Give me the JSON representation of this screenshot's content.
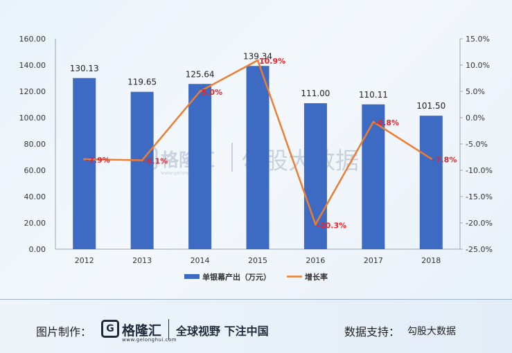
{
  "chart_data": {
    "type": "bar",
    "categories": [
      "2012",
      "2013",
      "2014",
      "2015",
      "2016",
      "2017",
      "2018"
    ],
    "series": [
      {
        "name": "单银幕产出（万元）",
        "type": "bar",
        "axis": "left",
        "values": [
          130.13,
          119.65,
          125.64,
          139.34,
          111.0,
          110.11,
          101.5
        ],
        "labels": [
          "130.13",
          "119.65",
          "125.64",
          "139.34",
          "111.00",
          "110.11",
          "101.50"
        ]
      },
      {
        "name": "增长率",
        "type": "line",
        "axis": "right",
        "values": [
          -7.9,
          -8.1,
          5.0,
          10.9,
          -20.3,
          -0.8,
          -7.8
        ],
        "labels": [
          "-7.9%",
          "-8.1%",
          "5.0%",
          "10.9%",
          "-20.3%",
          "-0.8%",
          "-7.8%"
        ]
      }
    ],
    "yleft": {
      "ylim": [
        0,
        160
      ],
      "ticks": [
        "0.00",
        "20.00",
        "40.00",
        "60.00",
        "80.00",
        "100.00",
        "120.00",
        "140.00",
        "160.00"
      ]
    },
    "yright": {
      "ylim": [
        -25,
        15
      ],
      "ticks": [
        "-25.0%",
        "-20.0%",
        "-15.0%",
        "-10.0%",
        "-5.0%",
        "0.0%",
        "5.0%",
        "10.0%",
        "15.0%"
      ]
    },
    "legend": "bottom-center",
    "colors": {
      "bar": "#3d6bc4",
      "line": "#ee7d31",
      "line_label": "#e8232a"
    }
  },
  "watermark": {
    "logo_text": "格隆汇",
    "logo_sub": "www.gelonghui.com",
    "source_text": "勾股大数据"
  },
  "footer": {
    "credit_label": "图片制作：",
    "brand_logo_letter": "G",
    "brand_name": "格隆汇",
    "brand_url": "www.gelonghui.com",
    "slogan": "全球视野 下注中国",
    "support_label": "数据支持：",
    "support_value": "勾股大数据"
  }
}
